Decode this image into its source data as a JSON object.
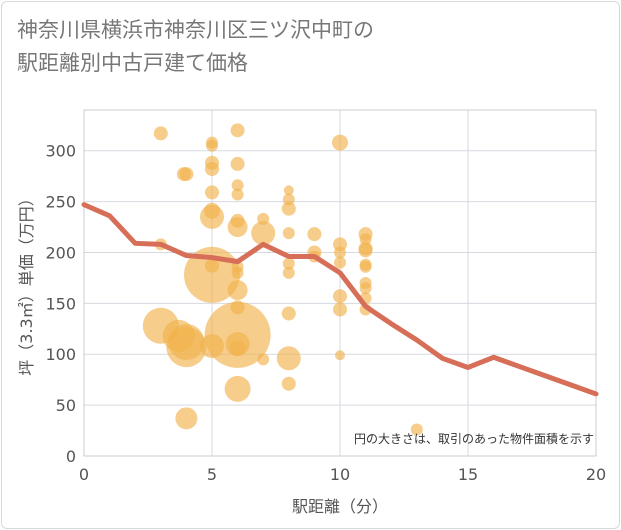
{
  "chart_data": {
    "type": "scatter",
    "title_lines": [
      "神奈川県横浜市神奈川区三ツ沢中町の",
      "駅距離別中古戸建て価格"
    ],
    "xlabel": "駅距離（分）",
    "ylabel": "坪（3.3㎡）単価（万円）",
    "note": "円の大きさは、取引のあった物件面積を示す",
    "xlim": [
      0,
      20
    ],
    "ylim": [
      0,
      340
    ],
    "x_ticks": [
      0,
      5,
      10,
      15,
      20
    ],
    "y_ticks": [
      0,
      50,
      100,
      150,
      200,
      250,
      300
    ],
    "grid": true,
    "bubble_color": "#f1b24d",
    "line_color": "#d66e58",
    "points": [
      {
        "x": 3,
        "y": 317,
        "s": 7
      },
      {
        "x": 3,
        "y": 208,
        "s": 6
      },
      {
        "x": 3,
        "y": 128,
        "s": 18
      },
      {
        "x": 3.7,
        "y": 118,
        "s": 16
      },
      {
        "x": 3.9,
        "y": 277,
        "s": 7
      },
      {
        "x": 4,
        "y": 277,
        "s": 7
      },
      {
        "x": 4,
        "y": 112,
        "s": 18
      },
      {
        "x": 4,
        "y": 107,
        "s": 20
      },
      {
        "x": 4,
        "y": 37,
        "s": 11
      },
      {
        "x": 5,
        "y": 308,
        "s": 6
      },
      {
        "x": 5,
        "y": 305,
        "s": 6
      },
      {
        "x": 5,
        "y": 288,
        "s": 7
      },
      {
        "x": 5,
        "y": 282,
        "s": 7
      },
      {
        "x": 5,
        "y": 259,
        "s": 7
      },
      {
        "x": 5,
        "y": 241,
        "s": 8
      },
      {
        "x": 5,
        "y": 235,
        "s": 12
      },
      {
        "x": 5,
        "y": 187,
        "s": 7
      },
      {
        "x": 5,
        "y": 178,
        "s": 28
      },
      {
        "x": 5,
        "y": 108,
        "s": 12
      },
      {
        "x": 6,
        "y": 320,
        "s": 7
      },
      {
        "x": 6,
        "y": 287,
        "s": 7
      },
      {
        "x": 6,
        "y": 266,
        "s": 6
      },
      {
        "x": 6,
        "y": 257,
        "s": 6
      },
      {
        "x": 6,
        "y": 231,
        "s": 7
      },
      {
        "x": 6,
        "y": 225,
        "s": 10
      },
      {
        "x": 6,
        "y": 186,
        "s": 6
      },
      {
        "x": 6,
        "y": 180,
        "s": 6
      },
      {
        "x": 6,
        "y": 163,
        "s": 10
      },
      {
        "x": 6,
        "y": 146,
        "s": 7
      },
      {
        "x": 6,
        "y": 119,
        "s": 33
      },
      {
        "x": 6,
        "y": 110,
        "s": 12
      },
      {
        "x": 6,
        "y": 106,
        "s": 8
      },
      {
        "x": 6,
        "y": 66,
        "s": 13
      },
      {
        "x": 7,
        "y": 233,
        "s": 6
      },
      {
        "x": 7,
        "y": 219,
        "s": 12
      },
      {
        "x": 7,
        "y": 95,
        "s": 6
      },
      {
        "x": 8,
        "y": 261,
        "s": 5
      },
      {
        "x": 8,
        "y": 252,
        "s": 6
      },
      {
        "x": 8,
        "y": 243,
        "s": 7
      },
      {
        "x": 8,
        "y": 219,
        "s": 6
      },
      {
        "x": 8,
        "y": 189,
        "s": 6
      },
      {
        "x": 8,
        "y": 180,
        "s": 6
      },
      {
        "x": 8,
        "y": 140,
        "s": 7
      },
      {
        "x": 8,
        "y": 96,
        "s": 12
      },
      {
        "x": 8,
        "y": 71,
        "s": 7
      },
      {
        "x": 9,
        "y": 218,
        "s": 7
      },
      {
        "x": 9,
        "y": 200,
        "s": 7
      },
      {
        "x": 9,
        "y": 196,
        "s": 6
      },
      {
        "x": 10,
        "y": 308,
        "s": 8
      },
      {
        "x": 10,
        "y": 208,
        "s": 7
      },
      {
        "x": 10,
        "y": 200,
        "s": 6
      },
      {
        "x": 10,
        "y": 190,
        "s": 6
      },
      {
        "x": 10,
        "y": 157,
        "s": 7
      },
      {
        "x": 10,
        "y": 144,
        "s": 7
      },
      {
        "x": 10,
        "y": 99,
        "s": 5
      },
      {
        "x": 11,
        "y": 218,
        "s": 7
      },
      {
        "x": 11,
        "y": 213,
        "s": 6
      },
      {
        "x": 11,
        "y": 204,
        "s": 7
      },
      {
        "x": 11,
        "y": 202,
        "s": 7
      },
      {
        "x": 11,
        "y": 188,
        "s": 6
      },
      {
        "x": 11,
        "y": 186,
        "s": 6
      },
      {
        "x": 11,
        "y": 170,
        "s": 6
      },
      {
        "x": 11,
        "y": 165,
        "s": 6
      },
      {
        "x": 11,
        "y": 155,
        "s": 6
      },
      {
        "x": 11,
        "y": 144,
        "s": 6
      },
      {
        "x": 13,
        "y": 26,
        "s": 6
      }
    ],
    "line": [
      {
        "x": 0,
        "y": 247
      },
      {
        "x": 1,
        "y": 236
      },
      {
        "x": 2,
        "y": 209
      },
      {
        "x": 3,
        "y": 208
      },
      {
        "x": 4,
        "y": 197
      },
      {
        "x": 5,
        "y": 195
      },
      {
        "x": 6,
        "y": 191
      },
      {
        "x": 7,
        "y": 208
      },
      {
        "x": 8,
        "y": 196
      },
      {
        "x": 9,
        "y": 196
      },
      {
        "x": 10,
        "y": 180
      },
      {
        "x": 11,
        "y": 147
      },
      {
        "x": 12,
        "y": 130
      },
      {
        "x": 13,
        "y": 114
      },
      {
        "x": 14,
        "y": 96
      },
      {
        "x": 15,
        "y": 87
      },
      {
        "x": 16,
        "y": 97
      },
      {
        "x": 17,
        "y": 88
      },
      {
        "x": 18,
        "y": 79
      },
      {
        "x": 19,
        "y": 70
      },
      {
        "x": 20,
        "y": 61
      }
    ]
  }
}
